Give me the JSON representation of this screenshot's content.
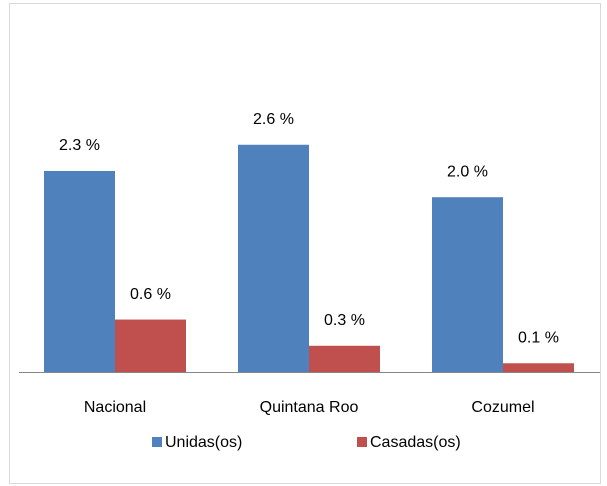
{
  "chart_data": {
    "type": "bar",
    "categories": [
      "Nacional",
      "Quintana Roo",
      "Cozumel"
    ],
    "series": [
      {
        "name": "Unidas(os)",
        "color": "#4f81bd",
        "values": [
          2.3,
          2.6,
          2.0
        ],
        "value_labels": [
          "2.3 %",
          "2.6 %",
          "2.0 %"
        ]
      },
      {
        "name": "Casadas(os)",
        "color": "#c0504d",
        "values": [
          0.6,
          0.3,
          0.1
        ],
        "value_labels": [
          "0.6 %",
          "0.3 %",
          "0.1 %"
        ]
      }
    ],
    "legend": "bottom"
  }
}
